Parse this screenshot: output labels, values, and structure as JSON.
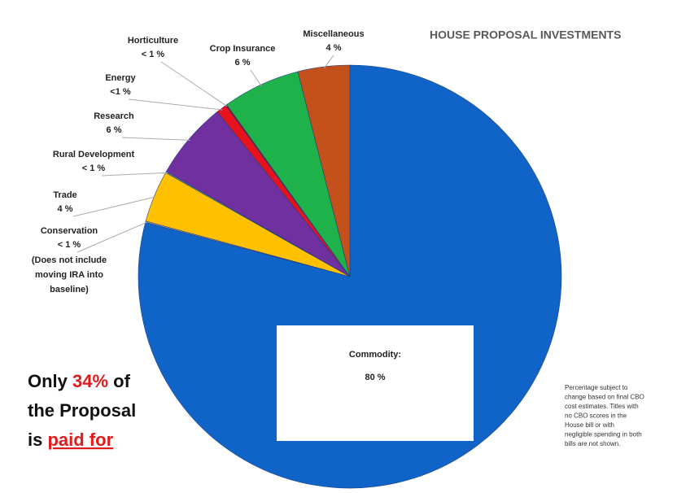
{
  "chart_data": {
    "type": "pie",
    "title": "HOUSE PROPOSAL INVESTMENTS",
    "categories": [
      "Commodity:",
      "Conservation",
      "Trade",
      "Rural Development",
      "Research",
      "Energy",
      "Horticulture",
      "Crop Insurance",
      "Miscellaneous"
    ],
    "values": [
      80,
      0.1,
      4,
      0.1,
      6,
      0.8,
      0.1,
      6,
      4
    ],
    "value_labels": [
      "80 %",
      "< 1 %",
      "4 %",
      "< 1 %",
      "6 %",
      "<1 %",
      "< 1 %",
      "6 %",
      "4 %"
    ],
    "colors": [
      "#1064c8",
      "#a5a5a5",
      "#ffc000",
      "#7f7f7f",
      "#7030a0",
      "#e8121c",
      "#c00000",
      "#1fb14a",
      "#c4501b"
    ],
    "category_note": [
      "(Does not include",
      "moving IRA into",
      "baseline)"
    ],
    "annotation": {
      "line1": [
        "Only ",
        "34%",
        " of"
      ],
      "line2": "the Proposal",
      "line3": [
        "is ",
        "paid for"
      ]
    },
    "footnote": [
      "Percentage subject to",
      "change based on final CBO",
      "cost estimates. Titles with",
      "no CBO scores in the",
      "House bill or with",
      "negligible spending in both",
      "bills are not shown."
    ]
  }
}
